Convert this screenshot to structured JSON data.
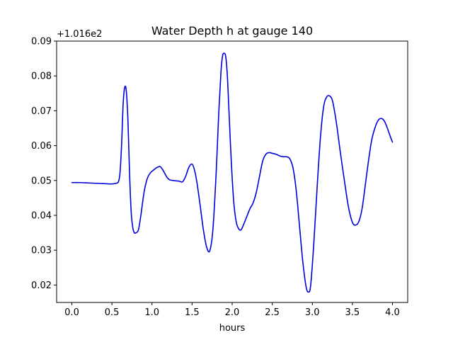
{
  "chart_data": {
    "type": "line",
    "title": "Water Depth h at gauge 140",
    "xlabel": "hours",
    "ylabel": "",
    "y_offset_label": "+1.016e2",
    "xlim": [
      -0.19,
      4.19
    ],
    "ylim": [
      0.015,
      0.09
    ],
    "xticks": [
      0.0,
      0.5,
      1.0,
      1.5,
      2.0,
      2.5,
      3.0,
      3.5,
      4.0
    ],
    "xtick_labels": [
      "0.0",
      "0.5",
      "1.0",
      "1.5",
      "2.0",
      "2.5",
      "3.0",
      "3.5",
      "4.0"
    ],
    "yticks": [
      0.02,
      0.03,
      0.04,
      0.05,
      0.06,
      0.07,
      0.08,
      0.09
    ],
    "ytick_labels": [
      "0.02",
      "0.03",
      "0.04",
      "0.05",
      "0.06",
      "0.07",
      "0.08",
      "0.09"
    ],
    "grid": false,
    "series": [
      {
        "color": "#0000dd",
        "x": [
          0.0,
          0.1,
          0.2,
          0.3,
          0.4,
          0.5,
          0.55,
          0.58,
          0.6,
          0.62,
          0.64,
          0.66,
          0.68,
          0.7,
          0.72,
          0.74,
          0.76,
          0.78,
          0.8,
          0.83,
          0.86,
          0.9,
          0.94,
          0.98,
          1.02,
          1.06,
          1.1,
          1.13,
          1.16,
          1.19,
          1.22,
          1.26,
          1.3,
          1.34,
          1.38,
          1.42,
          1.46,
          1.5,
          1.53,
          1.56,
          1.6,
          1.64,
          1.68,
          1.72,
          1.76,
          1.8,
          1.83,
          1.86,
          1.88,
          1.9,
          1.92,
          1.94,
          1.96,
          1.99,
          2.02,
          2.05,
          2.08,
          2.11,
          2.14,
          2.18,
          2.22,
          2.26,
          2.3,
          2.34,
          2.38,
          2.42,
          2.46,
          2.5,
          2.55,
          2.6,
          2.64,
          2.68,
          2.72,
          2.76,
          2.8,
          2.84,
          2.88,
          2.92,
          2.95,
          2.98,
          3.02,
          3.06,
          3.1,
          3.14,
          3.18,
          3.22,
          3.25,
          3.28,
          3.31,
          3.35,
          3.4,
          3.45,
          3.5,
          3.54,
          3.58,
          3.62,
          3.66,
          3.7,
          3.74,
          3.78,
          3.82,
          3.86,
          3.9,
          3.94,
          3.97,
          4.0
        ],
        "y": [
          0.0494,
          0.0494,
          0.0493,
          0.0492,
          0.0491,
          0.049,
          0.0492,
          0.0496,
          0.052,
          0.06,
          0.072,
          0.0768,
          0.0755,
          0.067,
          0.052,
          0.041,
          0.0365,
          0.035,
          0.035,
          0.0358,
          0.0398,
          0.0465,
          0.0505,
          0.0522,
          0.053,
          0.0537,
          0.054,
          0.0532,
          0.052,
          0.0508,
          0.0502,
          0.05,
          0.0499,
          0.0498,
          0.0496,
          0.0512,
          0.0538,
          0.0547,
          0.053,
          0.0495,
          0.043,
          0.036,
          0.031,
          0.0298,
          0.036,
          0.052,
          0.068,
          0.081,
          0.0857,
          0.0865,
          0.0855,
          0.08,
          0.07,
          0.055,
          0.0438,
          0.0382,
          0.0362,
          0.0358,
          0.0372,
          0.0395,
          0.0418,
          0.0435,
          0.0465,
          0.051,
          0.0555,
          0.0575,
          0.058,
          0.0578,
          0.0575,
          0.057,
          0.0568,
          0.0568,
          0.0562,
          0.0535,
          0.047,
          0.037,
          0.027,
          0.0198,
          0.018,
          0.02,
          0.0325,
          0.048,
          0.062,
          0.071,
          0.074,
          0.0742,
          0.073,
          0.0695,
          0.065,
          0.058,
          0.05,
          0.0425,
          0.038,
          0.0372,
          0.0382,
          0.0418,
          0.0485,
          0.0555,
          0.0615,
          0.065,
          0.0672,
          0.0678,
          0.067,
          0.0648,
          0.0628,
          0.061
        ]
      }
    ]
  }
}
